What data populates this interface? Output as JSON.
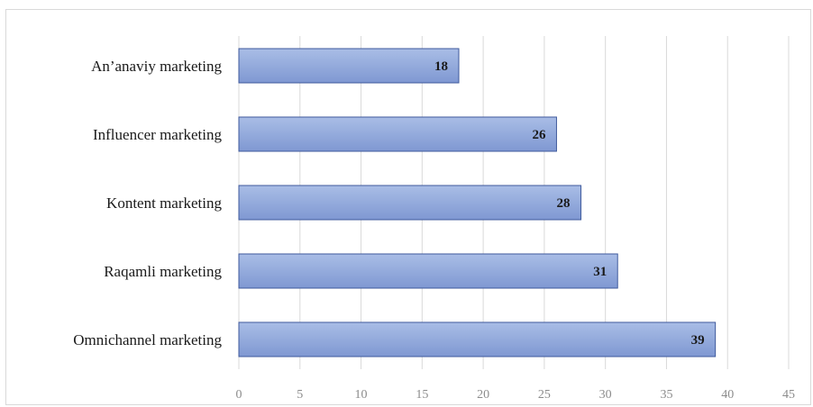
{
  "chart_data": {
    "type": "bar",
    "orientation": "horizontal",
    "categories": [
      "An’anaviy marketing",
      "Influencer marketing",
      "Kontent marketing",
      "Raqamli marketing",
      "Omnichannel marketing"
    ],
    "values": [
      18,
      26,
      28,
      31,
      39
    ],
    "xlim": [
      0,
      45
    ],
    "x_ticks": [
      0,
      5,
      10,
      15,
      20,
      25,
      30,
      35,
      40,
      45
    ],
    "grid": "vertical",
    "legend": "none",
    "data_labels": true,
    "colors": {
      "bar_fill_light": "#a9bde6",
      "bar_fill_dark": "#7f98d2",
      "bar_border": "#3f5a9c",
      "grid": "#d9d9d9",
      "tick_text": "#8c8c8c",
      "label_text": "#1a1a1a"
    }
  }
}
